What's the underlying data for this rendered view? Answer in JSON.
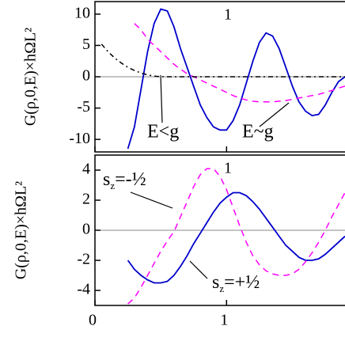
{
  "chart_data": [
    {
      "type": "line",
      "ylabel": "G(ρ,0,E)×hΩL²",
      "label": "1",
      "xlim": [
        0,
        1.9
      ],
      "xticks": [
        0,
        1
      ],
      "ylim": [
        -12,
        12
      ],
      "yticks": [
        10,
        5,
        0,
        -5,
        -10
      ],
      "x": [
        0.05,
        0.1,
        0.15,
        0.2,
        0.25,
        0.3,
        0.35,
        0.4,
        0.45,
        0.5,
        0.55,
        0.6,
        0.65,
        0.7,
        0.75,
        0.8,
        0.85,
        0.9,
        0.95,
        1.0,
        1.05,
        1.1,
        1.15,
        1.2,
        1.25,
        1.3,
        1.35,
        1.4,
        1.45,
        1.5,
        1.55,
        1.6,
        1.65,
        1.7,
        1.75,
        1.8,
        1.85,
        1.9
      ],
      "series": [
        {
          "color": "#0000cc",
          "dash": "solid",
          "values": [
            null,
            null,
            null,
            null,
            -11.5,
            -8,
            -2,
            4,
            8.5,
            10.8,
            10.5,
            8,
            4.5,
            1.5,
            -1.5,
            -4.5,
            -6.5,
            -8,
            -8.5,
            -8.5,
            -7,
            -4.5,
            -1,
            2.5,
            5.5,
            7,
            6.5,
            4.5,
            1.5,
            -1.5,
            -4,
            -5.5,
            -6.2,
            -6,
            -4.5,
            -2.5,
            -0.8,
            0
          ]
        },
        {
          "color": "#ff00ff",
          "dash": "dashed",
          "values": [
            null,
            null,
            null,
            null,
            null,
            8.5,
            7.5,
            6,
            5,
            4,
            3,
            2,
            1.2,
            0.5,
            0,
            -0.5,
            -1,
            -1.5,
            -2,
            -2.5,
            -3,
            -3.4,
            -3.7,
            -3.9,
            -4,
            -4,
            -4,
            -3.9,
            -3.8,
            -3.6,
            -3.4,
            -3.2,
            -3,
            -2.8,
            -2.5,
            -2.2,
            -1.8,
            -1.5
          ]
        },
        {
          "color": "#000000",
          "dash": "dashdot",
          "values": [
            5.2,
            4,
            3,
            2.2,
            1.5,
            1,
            0.6,
            0.3,
            0.1,
            0,
            0,
            0,
            0,
            0,
            0,
            0,
            0,
            0,
            0,
            0,
            0,
            0,
            0,
            0,
            0,
            0,
            0,
            0,
            0,
            0,
            0,
            0,
            0,
            0,
            0,
            0,
            0,
            0
          ]
        }
      ],
      "annotations": [
        "E<g",
        "E~g"
      ]
    },
    {
      "type": "line",
      "ylabel": "G(ρ,0,E)×hΩL²",
      "label": "1",
      "xlim": [
        0,
        1.9
      ],
      "xticks": [
        0,
        1
      ],
      "ylim": [
        -5,
        5
      ],
      "yticks": [
        4,
        2,
        0,
        -2,
        -4
      ],
      "x": [
        0.05,
        0.1,
        0.15,
        0.2,
        0.25,
        0.3,
        0.35,
        0.4,
        0.45,
        0.5,
        0.55,
        0.6,
        0.65,
        0.7,
        0.75,
        0.8,
        0.85,
        0.9,
        0.95,
        1.0,
        1.05,
        1.1,
        1.15,
        1.2,
        1.25,
        1.3,
        1.35,
        1.4,
        1.45,
        1.5,
        1.55,
        1.6,
        1.65,
        1.7,
        1.75,
        1.8,
        1.85,
        1.9
      ],
      "series": [
        {
          "color": "#0000cc",
          "dash": "solid",
          "values": [
            null,
            null,
            null,
            null,
            -2,
            -2.6,
            -3,
            -3.3,
            -3.5,
            -3.5,
            -3.4,
            -3,
            -2.4,
            -1.7,
            -0.9,
            -0.2,
            0.5,
            1.2,
            1.8,
            2.2,
            2.5,
            2.5,
            2.3,
            1.9,
            1.4,
            0.8,
            0.2,
            -0.4,
            -1,
            -1.4,
            -1.8,
            -2,
            -2,
            -1.9,
            -1.6,
            -1.2,
            -0.8,
            -0.4
          ]
        },
        {
          "color": "#ff00ff",
          "dash": "dashed",
          "values": [
            null,
            null,
            null,
            null,
            -4.9,
            -4.5,
            -3.8,
            -3,
            -2.2,
            -1.4,
            -0.7,
            -0.1,
            0.9,
            1.9,
            2.9,
            3.7,
            4.1,
            4.1,
            3.6,
            2.7,
            1.5,
            0.3,
            -0.8,
            -1.7,
            -2.3,
            -2.7,
            -2.9,
            -3,
            -3,
            -2.9,
            -2.6,
            -2.1,
            -1.5,
            -0.8,
            0,
            0.9,
            1.7,
            2.5
          ]
        }
      ],
      "spin_labels": [
        {
          "main": "s",
          "sub": "z",
          "tail": "=-½"
        },
        {
          "main": "s",
          "sub": "z",
          "tail": "=+½"
        }
      ]
    }
  ]
}
